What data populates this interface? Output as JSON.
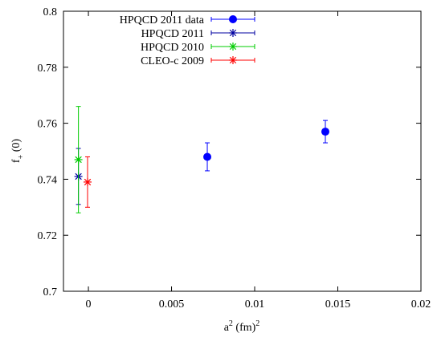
{
  "chart_data": {
    "type": "scatter",
    "xlabel": "a",
    "xlabel_sup1": "2",
    "xlabel_unit": " (fm)",
    "xlabel_sup2": "2",
    "ylabel": "f",
    "ylabel_sub": "+",
    "ylabel_tail": " (0)",
    "xlim": [
      -0.0015,
      0.02
    ],
    "ylim": [
      0.7,
      0.8
    ],
    "x_ticks": [
      0,
      0.005,
      0.01,
      0.015,
      0.02
    ],
    "x_tick_labels": [
      "0",
      "0.005",
      "0.01",
      "0.015",
      "0.02"
    ],
    "y_ticks": [
      0.7,
      0.72,
      0.74,
      0.76,
      0.78,
      0.8
    ],
    "y_tick_labels": [
      "0.7",
      "0.72",
      "0.74",
      "0.76",
      "0.78",
      "0.8"
    ],
    "grid": false,
    "legend_position": "top-left",
    "series": [
      {
        "name": "HPQCD 2011 data",
        "color": "#0000ff",
        "marker": "filled-circle",
        "points": [
          {
            "x": 0.00715,
            "y": 0.748,
            "yerr": 0.005
          },
          {
            "x": 0.01425,
            "y": 0.757,
            "yerr": 0.004
          }
        ]
      },
      {
        "name": "HPQCD 2011",
        "color": "#0000a0",
        "marker": "star",
        "points": [
          {
            "x": -0.0006,
            "y": 0.741,
            "yerr": 0.01
          }
        ]
      },
      {
        "name": "HPQCD 2010",
        "color": "#00cc00",
        "marker": "star",
        "points": [
          {
            "x": -0.0006,
            "y": 0.747,
            "yerr": 0.019
          }
        ]
      },
      {
        "name": "CLEO-c 2009",
        "color": "#ff0000",
        "marker": "star",
        "points": [
          {
            "x": -5e-05,
            "y": 0.739,
            "yerr": 0.009
          }
        ]
      }
    ]
  }
}
